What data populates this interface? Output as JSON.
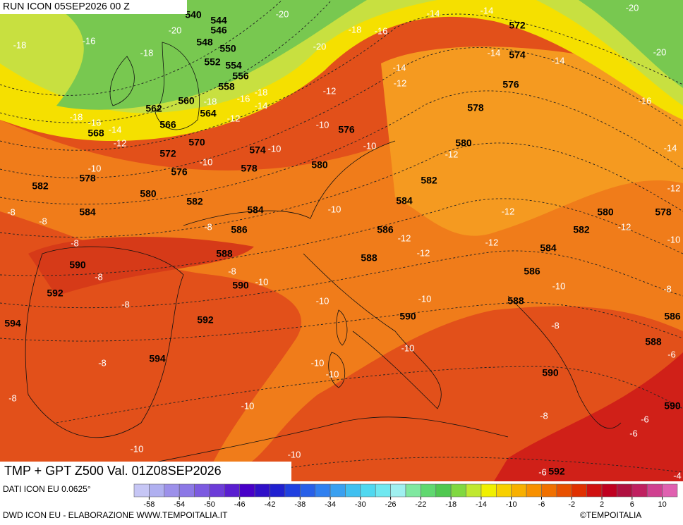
{
  "header": {
    "run": "RUN ICON 05SEP2026 00 Z",
    "title": "TMP + GPT Z500 Val. 01Z08SEP2026"
  },
  "footer": {
    "source": "DATI ICON EU 0.0625°",
    "credit": "DWD ICON EU - ELABORAZIONE WWW.TEMPOITALIA.IT",
    "copyright": "©TEMPOITALIA"
  },
  "colorbar": {
    "range": [
      -60,
      12
    ],
    "ticks": [
      -58,
      -54,
      -50,
      -46,
      -42,
      -38,
      -34,
      -30,
      -26,
      -22,
      -18,
      -14,
      -10,
      -6,
      -2,
      2,
      6,
      10
    ],
    "colors": [
      "#c6c6f5",
      "#b0b0f0",
      "#9c90ea",
      "#8c78e6",
      "#7c5ae0",
      "#6c3cd8",
      "#5a1ed0",
      "#4800c8",
      "#3010c8",
      "#2020d0",
      "#2040e0",
      "#2860e8",
      "#3080f0",
      "#3aa0f0",
      "#40c0f0",
      "#50d8f0",
      "#70e8f0",
      "#a0f0f0",
      "#80e8a0",
      "#60d870",
      "#50c850",
      "#80d840",
      "#c0e830",
      "#f0f000",
      "#f8d000",
      "#f8b000",
      "#f89000",
      "#f07000",
      "#e85000",
      "#e03000",
      "#d01010",
      "#c00020",
      "#b01040",
      "#c02060",
      "#d04090",
      "#e060b0"
    ]
  },
  "contour_labels": {
    "geopotential": [
      540,
      544,
      546,
      548,
      550,
      552,
      554,
      556,
      558,
      560,
      562,
      564,
      566,
      568,
      570,
      572,
      574,
      576,
      576,
      578,
      578,
      580,
      580,
      582,
      582,
      584,
      584,
      586,
      588,
      590,
      590,
      592,
      592,
      594,
      594,
      572,
      574,
      576,
      578,
      580,
      582,
      584,
      586,
      588,
      590,
      588,
      586,
      584,
      582,
      580,
      578,
      586,
      588,
      590,
      590,
      592
    ],
    "temperature": [
      -20,
      -20,
      -18,
      -16,
      -18,
      -20,
      -18,
      -16,
      -14,
      -14,
      -20,
      -20,
      -14,
      -14,
      -14,
      -12,
      -12,
      -18,
      -16,
      -14,
      -18,
      -12,
      -10,
      -18,
      -16,
      -14,
      -12,
      -10,
      -10,
      -12,
      -16,
      -14,
      -10,
      -10,
      -12,
      -12,
      -12,
      -10,
      -10,
      -12,
      -12,
      -12,
      -8,
      -8,
      -8,
      -8,
      -8,
      -8,
      -10,
      -10,
      -8,
      -8,
      -10,
      -10,
      -8,
      -6,
      -8,
      -10,
      -10,
      -10,
      -8,
      -10,
      -8,
      -6,
      -6,
      -10,
      -10,
      -6,
      -4
    ]
  }
}
